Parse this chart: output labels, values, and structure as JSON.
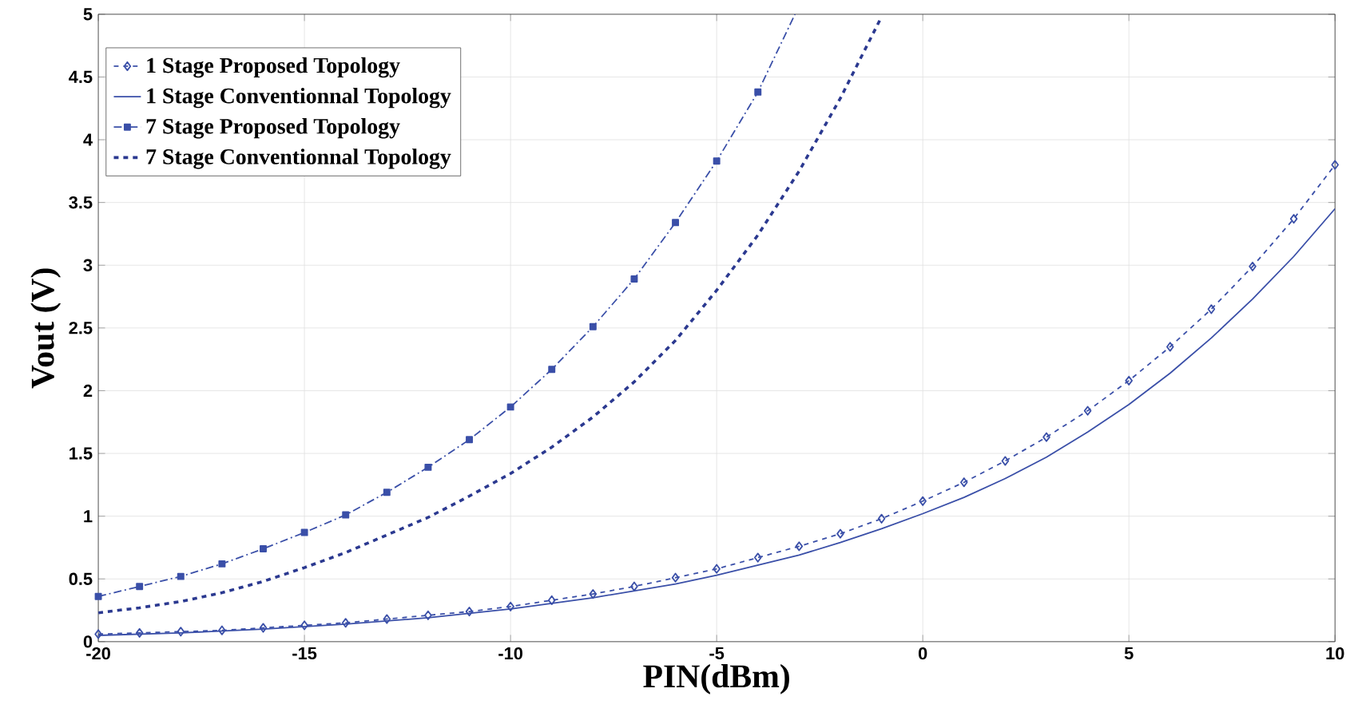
{
  "chart_data": {
    "type": "line",
    "xlabel": "PIN(dBm)",
    "ylabel": "Vout (V)",
    "xlim": [
      -20,
      10
    ],
    "ylim": [
      0,
      5
    ],
    "xticks": [
      -20,
      -15,
      -10,
      -5,
      0,
      5,
      10
    ],
    "yticks": [
      0,
      0.5,
      1,
      1.5,
      2,
      2.5,
      3,
      3.5,
      4,
      4.5,
      5
    ],
    "grid": true,
    "legend": "top left",
    "series": [
      {
        "name": "1 Stage Proposed Topology",
        "color": "#3a4fa8",
        "marker": "diamond",
        "line_style": "dashed",
        "x": [
          -20,
          -19,
          -18,
          -17,
          -16,
          -15,
          -14,
          -13,
          -12,
          -11,
          -10,
          -9,
          -8,
          -7,
          -6,
          -5,
          -4,
          -3,
          -2,
          -1,
          0,
          1,
          2,
          3,
          4,
          5,
          6,
          7,
          8,
          9,
          10
        ],
        "values": [
          0.06,
          0.07,
          0.08,
          0.09,
          0.11,
          0.13,
          0.15,
          0.18,
          0.21,
          0.24,
          0.28,
          0.33,
          0.38,
          0.44,
          0.51,
          0.58,
          0.67,
          0.76,
          0.86,
          0.98,
          1.12,
          1.27,
          1.44,
          1.63,
          1.84,
          2.08,
          2.35,
          2.65,
          2.99,
          3.37,
          3.8
        ]
      },
      {
        "name": "1 Stage Conventionnal Topology",
        "color": "#3a4fa8",
        "marker": "none",
        "line_style": "solid",
        "x": [
          -20,
          -18,
          -16,
          -15,
          -14,
          -12,
          -10,
          -8,
          -6,
          -5,
          -4,
          -3,
          -2,
          -1,
          0,
          1,
          2,
          3,
          4,
          5,
          6,
          7,
          8,
          9,
          10
        ],
        "values": [
          0.05,
          0.07,
          0.1,
          0.12,
          0.14,
          0.19,
          0.26,
          0.35,
          0.46,
          0.53,
          0.61,
          0.69,
          0.79,
          0.9,
          1.02,
          1.15,
          1.3,
          1.47,
          1.67,
          1.89,
          2.14,
          2.42,
          2.73,
          3.07,
          3.45
        ]
      },
      {
        "name": "7 Stage Proposed Topology",
        "color": "#3a4fa8",
        "marker": "square",
        "line_style": "dashdot",
        "x": [
          -20,
          -19,
          -18,
          -17,
          -16,
          -15,
          -14,
          -13,
          -12,
          -11,
          -10,
          -9,
          -8,
          -7,
          -6,
          -5,
          -4,
          -3.1
        ],
        "values": [
          0.36,
          0.44,
          0.52,
          0.62,
          0.74,
          0.87,
          1.01,
          1.19,
          1.39,
          1.61,
          1.87,
          2.17,
          2.51,
          2.89,
          3.34,
          3.83,
          4.38,
          5.0
        ]
      },
      {
        "name": "7 Stage Conventionnal Topology",
        "color": "#2b3990",
        "marker": "none",
        "line_style": "dashed",
        "x": [
          -20,
          -19,
          -18,
          -17,
          -16,
          -15,
          -14,
          -13,
          -12,
          -11,
          -10,
          -9,
          -8,
          -7,
          -6,
          -5,
          -4,
          -3,
          -2,
          -1
        ],
        "values": [
          0.23,
          0.27,
          0.32,
          0.39,
          0.48,
          0.59,
          0.71,
          0.85,
          0.99,
          1.16,
          1.34,
          1.55,
          1.79,
          2.07,
          2.4,
          2.8,
          3.24,
          3.75,
          4.33,
          4.98
        ]
      }
    ]
  }
}
